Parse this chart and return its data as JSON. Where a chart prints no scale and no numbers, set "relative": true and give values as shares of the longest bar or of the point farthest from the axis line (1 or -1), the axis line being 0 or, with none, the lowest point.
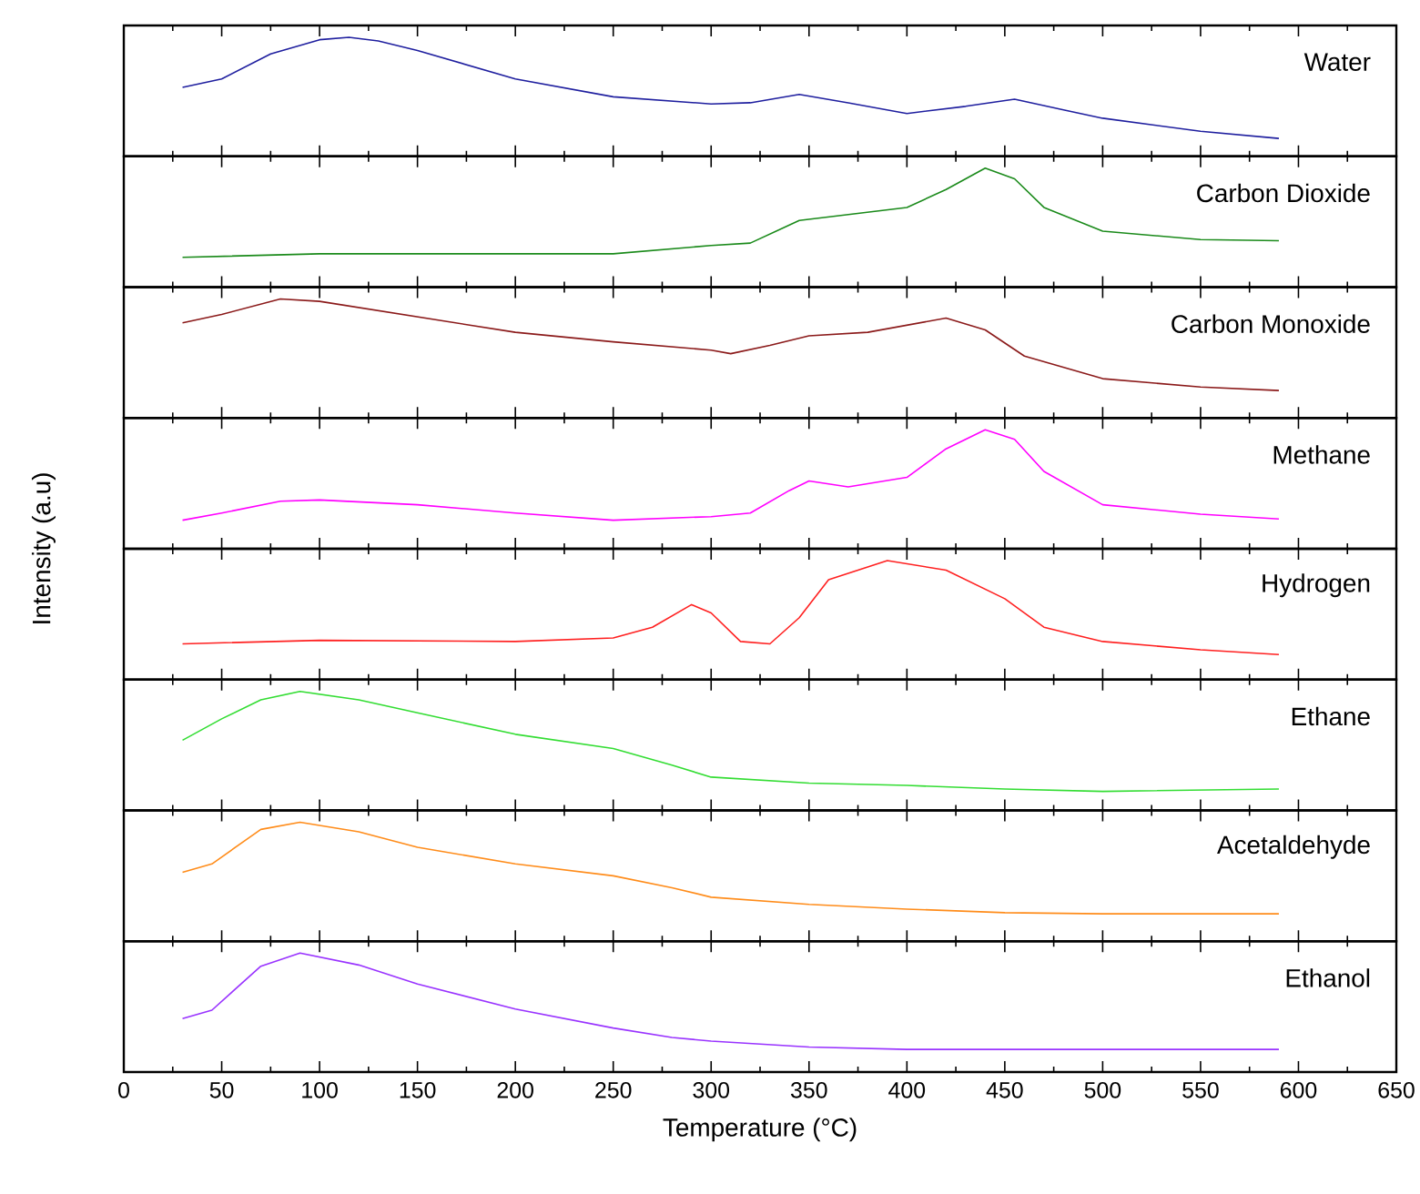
{
  "chart_data": [
    {
      "type": "line",
      "relative": true,
      "xlim": [
        0,
        650
      ],
      "xticks": [
        0,
        50,
        100,
        150,
        200,
        250,
        300,
        350,
        400,
        450,
        500,
        550,
        600,
        650
      ],
      "tick_labels": false,
      "x": [
        30,
        50,
        75,
        100,
        115,
        130,
        150,
        200,
        250,
        300,
        320,
        345,
        370,
        400,
        430,
        455,
        480,
        500,
        550,
        590
      ],
      "series": [
        {
          "name": "Water",
          "color": "#1f1f9f",
          "values": [
            0.58,
            0.65,
            0.86,
            0.98,
            1,
            0.97,
            0.89,
            0.65,
            0.5,
            0.44,
            0.45,
            0.52,
            0.45,
            0.36,
            0.42,
            0.48,
            0.39,
            0.32,
            0.21,
            0.15
          ]
        }
      ]
    },
    {
      "type": "line",
      "relative": true,
      "xlim": [
        0,
        650
      ],
      "xticks": [
        0,
        50,
        100,
        150,
        200,
        250,
        300,
        350,
        400,
        450,
        500,
        550,
        600,
        650
      ],
      "tick_labels": false,
      "x": [
        30,
        100,
        250,
        300,
        320,
        345,
        400,
        420,
        440,
        455,
        470,
        500,
        550,
        590
      ],
      "series": [
        {
          "name": "Carbon Dioxide",
          "color": "#1a8a1a",
          "values": [
            0.25,
            0.28,
            0.28,
            0.35,
            0.37,
            0.56,
            0.67,
            0.82,
            1,
            0.91,
            0.67,
            0.47,
            0.4,
            0.39
          ]
        }
      ]
    },
    {
      "type": "line",
      "relative": true,
      "xlim": [
        0,
        650
      ],
      "xticks": [
        0,
        50,
        100,
        150,
        200,
        250,
        300,
        350,
        400,
        450,
        500,
        550,
        600,
        650
      ],
      "tick_labels": false,
      "x": [
        30,
        50,
        80,
        100,
        150,
        200,
        250,
        300,
        310,
        330,
        350,
        380,
        420,
        440,
        460,
        500,
        550,
        590
      ],
      "series": [
        {
          "name": "Carbon Monoxide",
          "color": "#8b1a1a",
          "values": [
            0.8,
            0.87,
            1,
            0.98,
            0.85,
            0.72,
            0.64,
            0.57,
            0.54,
            0.61,
            0.69,
            0.72,
            0.84,
            0.74,
            0.52,
            0.33,
            0.26,
            0.23
          ]
        }
      ]
    },
    {
      "type": "line",
      "relative": true,
      "xlim": [
        0,
        650
      ],
      "xticks": [
        0,
        50,
        100,
        150,
        200,
        250,
        300,
        350,
        400,
        450,
        500,
        550,
        600,
        650
      ],
      "tick_labels": false,
      "ylabel": "Intensity (a.u)",
      "x": [
        30,
        50,
        80,
        100,
        150,
        200,
        250,
        300,
        320,
        340,
        350,
        370,
        400,
        420,
        440,
        455,
        470,
        500,
        550,
        590
      ],
      "series": [
        {
          "name": "Methane",
          "color": "#ff00ff",
          "values": [
            0.24,
            0.3,
            0.4,
            0.41,
            0.37,
            0.3,
            0.24,
            0.27,
            0.3,
            0.49,
            0.57,
            0.52,
            0.6,
            0.84,
            1,
            0.92,
            0.65,
            0.37,
            0.29,
            0.25
          ]
        }
      ]
    },
    {
      "type": "line",
      "relative": true,
      "xlim": [
        0,
        650
      ],
      "xticks": [
        0,
        50,
        100,
        150,
        200,
        250,
        300,
        350,
        400,
        450,
        500,
        550,
        600,
        650
      ],
      "tick_labels": false,
      "x": [
        30,
        100,
        200,
        250,
        270,
        290,
        300,
        315,
        330,
        345,
        360,
        390,
        420,
        450,
        470,
        500,
        550,
        590
      ],
      "series": [
        {
          "name": "Hydrogen",
          "color": "#ff2020",
          "values": [
            0.3,
            0.33,
            0.32,
            0.35,
            0.44,
            0.63,
            0.56,
            0.32,
            0.3,
            0.52,
            0.84,
            1,
            0.92,
            0.68,
            0.44,
            0.32,
            0.25,
            0.21
          ]
        }
      ]
    },
    {
      "type": "line",
      "relative": true,
      "xlim": [
        0,
        650
      ],
      "xticks": [
        0,
        50,
        100,
        150,
        200,
        250,
        300,
        350,
        400,
        450,
        500,
        550,
        600,
        650
      ],
      "tick_labels": false,
      "x": [
        30,
        50,
        70,
        90,
        120,
        150,
        200,
        250,
        280,
        300,
        350,
        400,
        450,
        500,
        590
      ],
      "series": [
        {
          "name": "Ethane",
          "color": "#33dd33",
          "values": [
            0.59,
            0.77,
            0.93,
            1,
            0.93,
            0.82,
            0.64,
            0.52,
            0.38,
            0.28,
            0.23,
            0.21,
            0.18,
            0.16,
            0.18
          ]
        }
      ]
    },
    {
      "type": "line",
      "relative": true,
      "xlim": [
        0,
        650
      ],
      "xticks": [
        0,
        50,
        100,
        150,
        200,
        250,
        300,
        350,
        400,
        450,
        500,
        550,
        600,
        650
      ],
      "tick_labels": false,
      "x": [
        30,
        45,
        70,
        90,
        120,
        150,
        200,
        250,
        280,
        300,
        350,
        400,
        450,
        500,
        590
      ],
      "series": [
        {
          "name": "Acetaldehyde",
          "color": "#ff8c1a",
          "values": [
            0.58,
            0.65,
            0.94,
            1,
            0.92,
            0.79,
            0.65,
            0.55,
            0.45,
            0.37,
            0.31,
            0.27,
            0.24,
            0.23,
            0.23
          ]
        }
      ]
    },
    {
      "type": "line",
      "relative": true,
      "xlim": [
        0,
        650
      ],
      "xticks": [
        0,
        50,
        100,
        150,
        200,
        250,
        300,
        350,
        400,
        450,
        500,
        550,
        600,
        650
      ],
      "tick_labels": "x",
      "xlabel": "Temperature (°C)",
      "x": [
        30,
        45,
        70,
        90,
        120,
        150,
        200,
        250,
        280,
        300,
        350,
        400,
        590
      ],
      "series": [
        {
          "name": "Ethanol",
          "color": "#9933ff",
          "values": [
            0.45,
            0.52,
            0.89,
            1,
            0.9,
            0.74,
            0.53,
            0.37,
            0.29,
            0.26,
            0.21,
            0.19,
            0.19
          ]
        }
      ]
    }
  ]
}
